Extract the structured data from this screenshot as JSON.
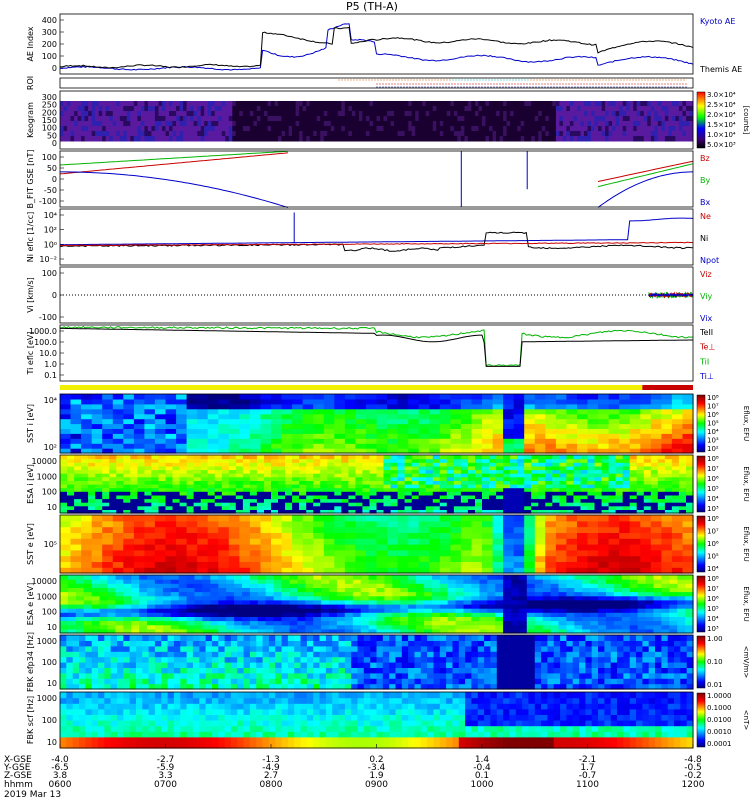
{
  "chart_data": {
    "type": "heatmap",
    "title": "P5 (TH-A)",
    "date": "2019 Mar 13",
    "time_ticks": [
      "0600",
      "0700",
      "0800",
      "0900",
      "1000",
      "1100",
      "1200"
    ],
    "ephemeris": {
      "labels": [
        "X-GSE",
        "Y-GSE",
        "Z-GSE",
        "hhmm"
      ],
      "values": [
        [
          "-4.0",
          "-6.5",
          "3.8"
        ],
        [
          "-2.7",
          "-5.9",
          "3.3"
        ],
        [
          "-1.3",
          "-4.9",
          "2.7"
        ],
        [
          "0.2",
          "-3.4",
          "1.9"
        ],
        [
          "1.4",
          "-0.4",
          "0.1"
        ],
        [
          "-2.1",
          "1.7",
          "-0.7"
        ],
        [
          "-4.8",
          "-0.5",
          "-0.2"
        ]
      ]
    },
    "panels": [
      {
        "id": "ae",
        "ylabel": "AE Index",
        "yticks": [
          "400",
          "300",
          "200",
          "100",
          "0"
        ],
        "legend": [
          {
            "label": "Kyoto AE",
            "color": "#0000c8"
          },
          {
            "label": "Themis AE",
            "color": "#000000"
          }
        ]
      },
      {
        "id": "roi",
        "ylabel": "ROI",
        "yticks": [],
        "legend": []
      },
      {
        "id": "keogram",
        "ylabel": "Keogram",
        "yticks": [
          "300",
          "250",
          "200",
          "150",
          "100",
          "50",
          "0"
        ],
        "colorbar": {
          "label": "[counts]",
          "ticks": [
            "3.0×10⁴",
            "2.5×10⁴",
            "2.0×10⁴",
            "1.5×10⁴",
            "1.0×10⁴",
            "5.0×10³"
          ]
        }
      },
      {
        "id": "bfit",
        "ylabel": "B_FIT GSE [nT]",
        "yticks": [
          "100",
          "50",
          "0",
          "-50",
          "-100"
        ],
        "legend": [
          {
            "label": "Bz",
            "color": "#c80000"
          },
          {
            "label": "By",
            "color": "#00b400"
          },
          {
            "label": "Bx",
            "color": "#0000c8"
          }
        ]
      },
      {
        "id": "ni",
        "ylabel": "Ni eflc [1/cc]",
        "yticks": [
          "10⁴",
          "10²",
          "10⁰",
          "10⁻²"
        ],
        "legend": [
          {
            "label": "Ne",
            "color": "#c80000"
          },
          {
            "label": "Ni",
            "color": "#000000"
          },
          {
            "label": "Npot",
            "color": "#0000c8"
          }
        ]
      },
      {
        "id": "vi",
        "ylabel": "Vi [km/s]",
        "yticks": [
          "100",
          "0",
          "-100"
        ],
        "legend": [
          {
            "label": "Viz",
            "color": "#c80000"
          },
          {
            "label": "Viy",
            "color": "#00b400"
          },
          {
            "label": "Vix",
            "color": "#0000c8"
          }
        ]
      },
      {
        "id": "ti",
        "ylabel": "Ti eflc [eV]",
        "yticks": [
          "1000.0",
          "100.0",
          "10.0",
          "1.0",
          "0.1"
        ],
        "legend": [
          {
            "label": "TeII",
            "color": "#000000"
          },
          {
            "label": "Te⊥",
            "color": "#c80000"
          },
          {
            "label": "TiI",
            "color": "#00b400"
          },
          {
            "label": "Ti⊥",
            "color": "#0000c8"
          }
        ]
      },
      {
        "id": "sst_i",
        "ylabel": "SST i [eV]",
        "yticks": [
          "10⁴",
          "10²"
        ],
        "colorbar": {
          "label": "Eflux, EFU",
          "ticks": [
            "10⁸",
            "10⁷",
            "10⁶",
            "10⁵",
            "10⁴",
            "10³",
            "10²"
          ]
        }
      },
      {
        "id": "esa_i",
        "ylabel": "ESA i [eV]",
        "yticks": [
          "10000",
          "1000",
          "100",
          "10"
        ],
        "colorbar": {
          "label": "Eflux, EFU",
          "ticks": [
            "10⁸",
            "10⁷",
            "10⁶",
            "10⁵",
            "10⁴",
            "10³"
          ]
        }
      },
      {
        "id": "sst_e",
        "ylabel": "SST e [eV]",
        "yticks": [
          "10⁵"
        ],
        "colorbar": {
          "label": "Eflux, EFU",
          "ticks": [
            "10⁸",
            "10⁷",
            "10⁶",
            "10⁵",
            "10⁴"
          ]
        }
      },
      {
        "id": "esa_e",
        "ylabel": "ESA e [eV]",
        "yticks": [
          "10000",
          "1000",
          "100",
          "10"
        ],
        "colorbar": {
          "label": "Eflux, EFU",
          "ticks": [
            "10⁸",
            "10⁷",
            "10⁶",
            "10⁵",
            "10⁴",
            "10³"
          ]
        }
      },
      {
        "id": "fbk_e",
        "ylabel": "FBK efp34 [Hz]",
        "yticks": [
          "1000",
          "100",
          "10"
        ],
        "colorbar": {
          "label": "<mV/m>",
          "ticks": [
            "1.00",
            "0.10",
            "0.01"
          ]
        }
      },
      {
        "id": "fbk_b",
        "ylabel": "FBK scf [Hz]",
        "yticks": [
          "1000",
          "100",
          "10"
        ],
        "colorbar": {
          "label": "<nT>",
          "ticks": [
            "1.0000",
            "0.1000",
            "0.0100",
            "0.0010",
            "0.0001"
          ]
        }
      }
    ],
    "colors": {
      "kyoto": "#0000c8",
      "themis": "#000000",
      "red": "#c80000",
      "green": "#00b400",
      "blue": "#0000c8"
    }
  }
}
